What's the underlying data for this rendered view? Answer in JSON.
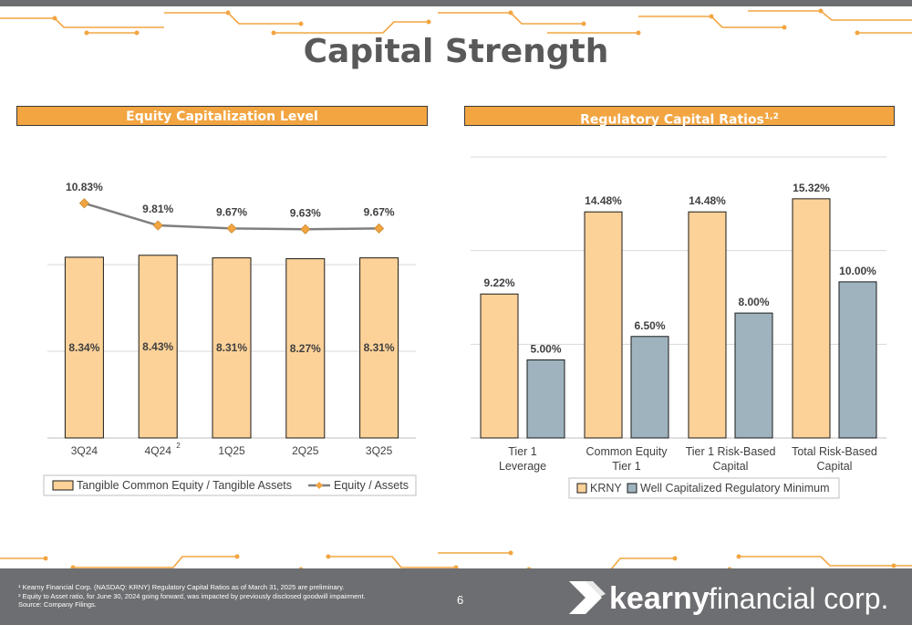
{
  "page": {
    "title": "Capital Strength",
    "page_number": "6",
    "footnotes": [
      "¹ Kearny Financial Corp. (NASDAQ: KRNY) Regulatory Capital Ratios as of March 31, 2025 are preliminary.",
      "² Equity to Asset ratio, for June 30, 2024 going forward, was impacted by previously disclosed goodwill impairment.",
      "Source: Company Filings."
    ],
    "logo": {
      "bold": "kearny",
      "light": "financial corp."
    }
  },
  "left_panel": {
    "header": "Equity Capitalization Level"
  },
  "right_panel": {
    "header": "Regulatory Capital Ratios",
    "header_sup": "1,2"
  },
  "colors": {
    "orange": "#f2a541",
    "bar_fill": "#fdd298",
    "slate": "#9eb3bd",
    "line": "#7f7f7f",
    "marker": "#f2a541",
    "gray_bar": "#6d6e71"
  },
  "chart_data": [
    {
      "type": "bar",
      "categories": [
        "3Q24",
        "4Q24",
        "1Q25",
        "2Q25",
        "3Q25"
      ],
      "category_sup": [
        "",
        "2",
        "",
        "",
        ""
      ],
      "series": [
        {
          "name": "Tangible Common Equity / Tangible Assets",
          "kind": "bar",
          "values": [
            8.34,
            8.43,
            8.31,
            8.27,
            8.31
          ],
          "labels": [
            "8.34%",
            "8.43%",
            "8.31%",
            "8.27%",
            "8.31%"
          ]
        },
        {
          "name": "Equity / Assets",
          "kind": "line",
          "values": [
            10.83,
            9.81,
            9.67,
            9.63,
            9.67
          ],
          "labels": [
            "10.83%",
            "9.81%",
            "9.67%",
            "9.63%",
            "9.67%"
          ]
        }
      ],
      "ylim": [
        0,
        12
      ],
      "grid": true,
      "legend_position": "bottom"
    },
    {
      "type": "bar",
      "categories": [
        "Tier 1\nLeverage",
        "Common Equity\nTier 1",
        "Tier 1 Risk-Based\nCapital",
        "Total Risk-Based\nCapital"
      ],
      "series": [
        {
          "name": "KRNY",
          "values": [
            9.22,
            14.48,
            14.48,
            15.32
          ],
          "labels": [
            "9.22%",
            "14.48%",
            "14.48%",
            "15.32%"
          ]
        },
        {
          "name": "Well Capitalized Regulatory Minimum",
          "values": [
            5.0,
            6.5,
            8.0,
            10.0
          ],
          "labels": [
            "5.00%",
            "6.50%",
            "8.00%",
            "10.00%"
          ]
        }
      ],
      "ylim": [
        0,
        18
      ],
      "grid": true,
      "legend_position": "bottom"
    }
  ]
}
